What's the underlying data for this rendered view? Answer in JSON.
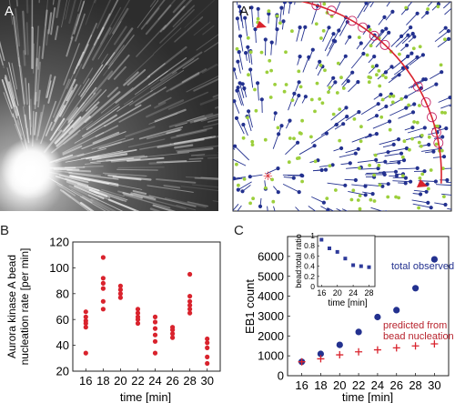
{
  "panels": {
    "a": {
      "letter": "A"
    },
    "a_prime": {
      "letter": "A'"
    },
    "b": {
      "letter": "B"
    },
    "c": {
      "letter": "C"
    }
  },
  "colors": {
    "red": "#d9232d",
    "blue": "#23318f",
    "green": "#9ccf3c",
    "inset_blue": "#2e3a9a"
  },
  "charts": {
    "b": {
      "xlabel": "time [min]",
      "ylabel_line1": "Aurora kinase A bead",
      "ylabel_line2": "nucleation rate [per min]"
    },
    "c": {
      "xlabel": "time [min]",
      "ylabel": "EB1 count",
      "legend_observed": "total observed",
      "legend_predicted_line1": "predicted from",
      "legend_predicted_line2": "bead nucleation",
      "inset": {
        "xlabel": "time [min]",
        "ylabel": "bead:total ratio"
      }
    }
  },
  "chart_data": [
    {
      "id": "B",
      "type": "scatter",
      "xlabel": "time [min]",
      "ylabel": "Aurora kinase A bead nucleation rate [per min]",
      "xlim": [
        14.5,
        31.5
      ],
      "ylim": [
        20,
        120
      ],
      "xticks": [
        "16",
        "18",
        "20",
        "22",
        "24",
        "26",
        "28",
        "30"
      ],
      "yticks": [
        "20",
        "40",
        "60",
        "80",
        "100",
        "120"
      ],
      "grid": false,
      "series": [
        {
          "color": "#d9232d",
          "points": [
            [
              16,
              34
            ],
            [
              16,
              54
            ],
            [
              16,
              57
            ],
            [
              16,
              59
            ],
            [
              16,
              62
            ],
            [
              16,
              66
            ],
            [
              18,
              68
            ],
            [
              18,
              74
            ],
            [
              18,
              84
            ],
            [
              18,
              88
            ],
            [
              18,
              92
            ],
            [
              18,
              108
            ],
            [
              20,
              77
            ],
            [
              20,
              80
            ],
            [
              20,
              83
            ],
            [
              20,
              86
            ],
            [
              22,
              57
            ],
            [
              22,
              60
            ],
            [
              22,
              62
            ],
            [
              22,
              65
            ],
            [
              22,
              68
            ],
            [
              24,
              34
            ],
            [
              24,
              43
            ],
            [
              24,
              48
            ],
            [
              24,
              53
            ],
            [
              24,
              58
            ],
            [
              24,
              62
            ],
            [
              26,
              46
            ],
            [
              26,
              49
            ],
            [
              26,
              52
            ],
            [
              26,
              54
            ],
            [
              28,
              65
            ],
            [
              28,
              68
            ],
            [
              28,
              71
            ],
            [
              28,
              74
            ],
            [
              28,
              78
            ],
            [
              28,
              95
            ],
            [
              30,
              26
            ],
            [
              30,
              31
            ],
            [
              30,
              38
            ],
            [
              30,
              42
            ],
            [
              30,
              45
            ]
          ]
        }
      ]
    },
    {
      "id": "C",
      "type": "scatter",
      "xlabel": "time [min]",
      "ylabel": "EB1 count",
      "xlim": [
        14.5,
        31.5
      ],
      "ylim": [
        0,
        7000
      ],
      "xticks": [
        "16",
        "18",
        "20",
        "22",
        "24",
        "26",
        "28",
        "30"
      ],
      "yticks": [
        "0",
        "1000",
        "2000",
        "3000",
        "4000",
        "5000",
        "6000"
      ],
      "grid": false,
      "series": [
        {
          "name": "total observed",
          "marker": "circle",
          "color": "#23318f",
          "x": [
            16,
            18,
            20,
            22,
            24,
            26,
            28,
            30
          ],
          "y": [
            700,
            1100,
            1550,
            2200,
            2950,
            3300,
            4400,
            5850
          ]
        },
        {
          "name": "predicted from bead nucleation",
          "marker": "plus",
          "color": "#d9232d",
          "x": [
            16,
            18,
            20,
            22,
            24,
            26,
            28,
            30
          ],
          "y": [
            700,
            850,
            1050,
            1200,
            1300,
            1400,
            1500,
            1600
          ]
        }
      ],
      "inset": {
        "type": "scatter",
        "xlabel": "time [min]",
        "ylabel": "bead:total ratio",
        "xlim": [
          15,
          29.5
        ],
        "ylim": [
          0,
          1
        ],
        "xticks": [
          "16",
          "20",
          "24",
          "28"
        ],
        "yticks": [
          "0",
          "0.2",
          "0.4",
          "0.6",
          "0.8",
          "1"
        ],
        "x": [
          16,
          18,
          20,
          22,
          24,
          26,
          28
        ],
        "y": [
          0.92,
          0.75,
          0.68,
          0.55,
          0.42,
          0.4,
          0.38
        ]
      }
    }
  ]
}
